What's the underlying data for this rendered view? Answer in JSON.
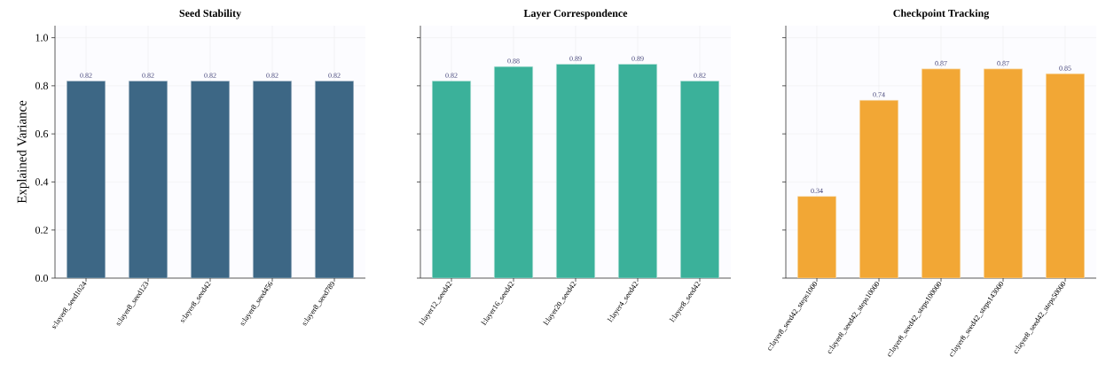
{
  "chart_data": [
    {
      "type": "bar",
      "title": "Seed Stability",
      "ylabel": "Explained Variance",
      "categories": [
        "s:layer8_seed1024",
        "s:layer8_seed123",
        "s:layer8_seed42",
        "s:layer8_seed456",
        "s:layer8_seed789"
      ],
      "values": [
        0.82,
        0.82,
        0.82,
        0.82,
        0.82
      ],
      "color": "#3d6785",
      "ylim": [
        0,
        1.05
      ],
      "yticks": [
        {
          "value": 0,
          "label": "0.0"
        },
        0.2,
        0.4,
        0.6,
        0.8,
        {
          "value": 1,
          "label": "1.0"
        }
      ],
      "grid": true,
      "data_labels": true
    },
    {
      "type": "bar",
      "title": "Layer Correspondence",
      "categories": [
        "l:layer12_seed42",
        "l:layer16_seed42",
        "l:layer20_seed42",
        "l:layer4_seed42",
        "l:layer8_seed42"
      ],
      "values": [
        0.82,
        0.88,
        0.89,
        0.89,
        0.82
      ],
      "color": "#3bb19a",
      "ylim": [
        0,
        1.05
      ],
      "yticks": [
        0.0,
        0.2,
        0.4,
        0.6,
        0.8,
        1.0
      ],
      "grid": true,
      "data_labels": true,
      "tick_labels": "x"
    },
    {
      "type": "bar",
      "title": "Checkpoint Tracking",
      "categories": [
        "c:layer8_seed42_steps1000",
        "c:layer8_seed42_steps10000",
        "c:layer8_seed42_steps100000",
        "c:layer8_seed42_steps143000",
        "c:layer8_seed42_steps50000"
      ],
      "values": [
        0.34,
        0.74,
        0.87,
        0.87,
        0.85
      ],
      "color": "#f2a735",
      "ylim": [
        0,
        1.05
      ],
      "yticks": [
        0.0,
        0.2,
        0.4,
        0.6,
        0.8,
        1.0
      ],
      "grid": true,
      "data_labels": true,
      "tick_labels": "x"
    }
  ]
}
